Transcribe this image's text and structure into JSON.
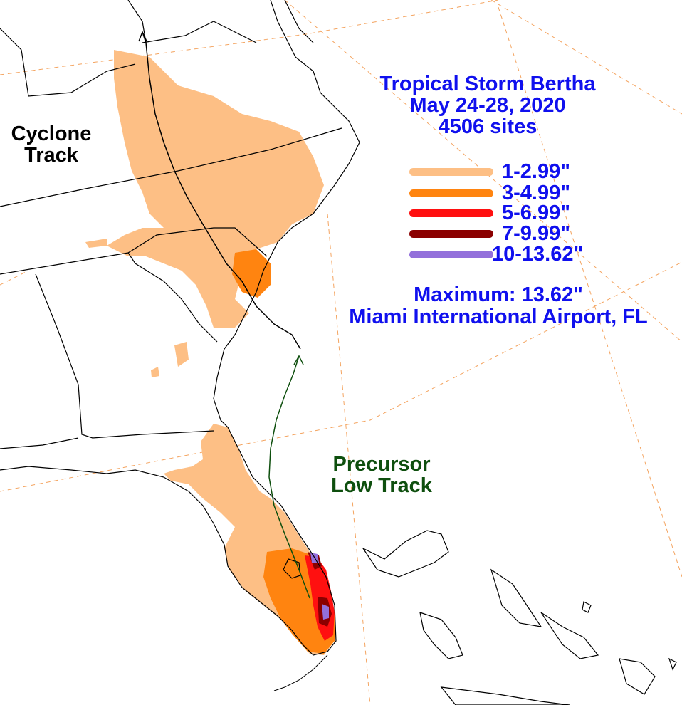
{
  "title": {
    "line1": "Tropical Storm Bertha",
    "line2": "May 24-28, 2020",
    "line3": "4506 sites"
  },
  "legend": [
    {
      "label": "1-2.99\"",
      "color": "#fdbf85"
    },
    {
      "label": "3-4.99\"",
      "color": "#ff8410"
    },
    {
      "label": "5-6.99\"",
      "color": "#ff1010"
    },
    {
      "label": "7-9.99\"",
      "color": "#8b0000"
    },
    {
      "label": "10-13.62\"",
      "color": "#9370db"
    }
  ],
  "maximum": {
    "line1": "Maximum:  13.62\"",
    "line2": "Miami International Airport, FL"
  },
  "tracks": {
    "cyclone_line1": "Cyclone",
    "cyclone_line2": "Track",
    "precursor_line1": "Precursor",
    "precursor_line2": "Low Track"
  },
  "colors": {
    "rain_1_3": "#fdbf85",
    "rain_3_5": "#ff8410",
    "rain_5_7": "#ff1010",
    "rain_7_10": "#8b0000",
    "rain_10_plus": "#9370db",
    "cyclone_track": "#000000",
    "precursor_track": "#0e4f0e",
    "grid": "#f4a460",
    "text": "#1010ee"
  }
}
